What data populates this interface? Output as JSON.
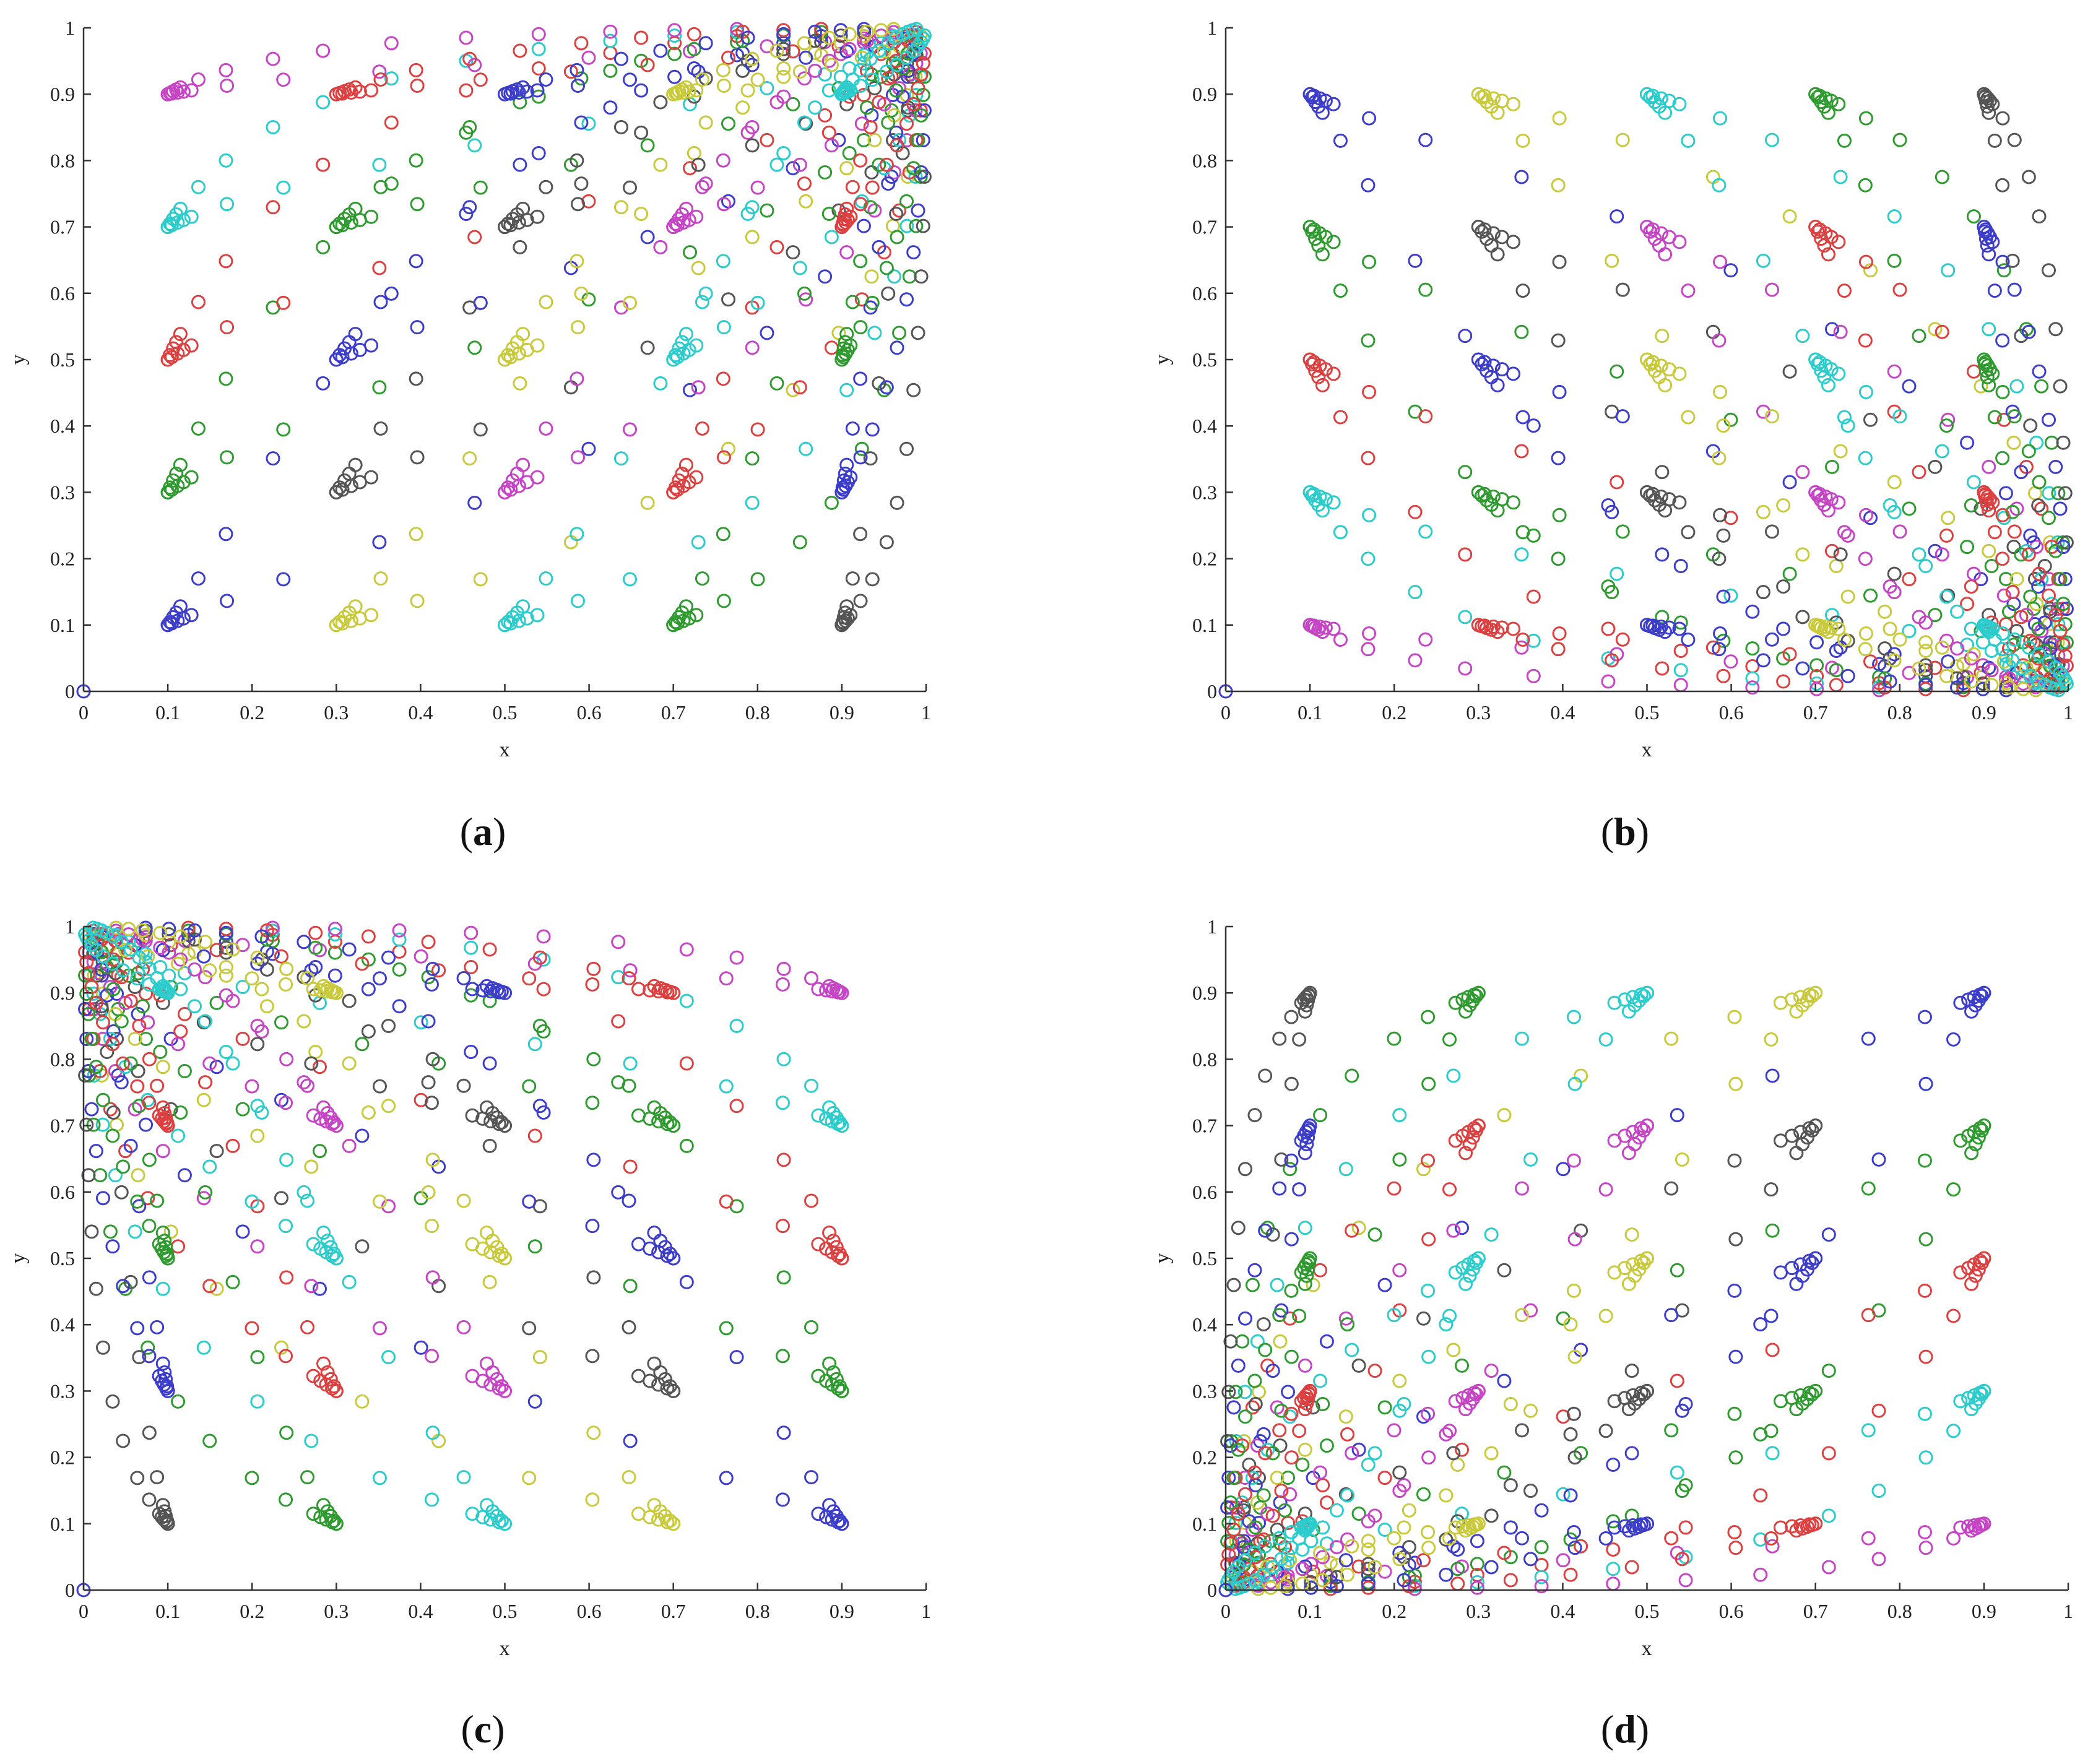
{
  "chart_data": [
    {
      "type": "scatter",
      "panel": "a",
      "title": "",
      "caption": {
        "open": "(",
        "letter": "a",
        "close": ")"
      },
      "xlabel": "x",
      "ylabel": "y",
      "xlim": [
        0,
        1
      ],
      "ylim": [
        0,
        1
      ],
      "xticks": [
        "0",
        "0.1",
        "0.2",
        "0.3",
        "0.4",
        "0.5",
        "0.6",
        "0.7",
        "0.8",
        "0.9",
        "1"
      ],
      "yticks": [
        "0",
        "0.1",
        "0.2",
        "0.3",
        "0.4",
        "0.5",
        "0.6",
        "0.7",
        "0.8",
        "0.9",
        "1"
      ],
      "grid": false,
      "marker": "open-circle",
      "transform": "identity",
      "description_of_series": "Grid of initial points (x0,y0) mapped by power-law curves x0^p, y0^q converging to (1,1)"
    },
    {
      "type": "scatter",
      "panel": "b",
      "title": "",
      "caption": {
        "open": "(",
        "letter": "b",
        "close": ")"
      },
      "xlabel": "x",
      "ylabel": "y",
      "xlim": [
        0,
        1
      ],
      "ylim": [
        0,
        1
      ],
      "xticks": [
        "0",
        "0.1",
        "0.2",
        "0.3",
        "0.4",
        "0.5",
        "0.6",
        "0.7",
        "0.8",
        "0.9",
        "1"
      ],
      "yticks": [
        "0",
        "0.1",
        "0.2",
        "0.3",
        "0.4",
        "0.5",
        "0.6",
        "0.7",
        "0.8",
        "0.9",
        "1"
      ],
      "grid": false,
      "marker": "open-circle",
      "transform": "converge-to-(1,0)"
    },
    {
      "type": "scatter",
      "panel": "c",
      "title": "",
      "caption": {
        "open": "(",
        "letter": "c",
        "close": ")"
      },
      "xlabel": "x",
      "ylabel": "y",
      "xlim": [
        0,
        1
      ],
      "ylim": [
        0,
        1
      ],
      "xticks": [
        "0",
        "0.1",
        "0.2",
        "0.3",
        "0.4",
        "0.5",
        "0.6",
        "0.7",
        "0.8",
        "0.9",
        "1"
      ],
      "yticks": [
        "0",
        "0.1",
        "0.2",
        "0.3",
        "0.4",
        "0.5",
        "0.6",
        "0.7",
        "0.8",
        "0.9",
        "1"
      ],
      "grid": false,
      "marker": "open-circle",
      "transform": "converge-to-(0,1)"
    },
    {
      "type": "scatter",
      "panel": "d",
      "title": "",
      "caption": {
        "open": "(",
        "letter": "d",
        "close": ")"
      },
      "xlabel": "x",
      "ylabel": "y",
      "xlim": [
        0,
        1
      ],
      "ylim": [
        0,
        1
      ],
      "xticks": [
        "0",
        "0.1",
        "0.2",
        "0.3",
        "0.4",
        "0.5",
        "0.6",
        "0.7",
        "0.8",
        "0.9",
        "1"
      ],
      "yticks": [
        "0",
        "0.1",
        "0.2",
        "0.3",
        "0.4",
        "0.5",
        "0.6",
        "0.7",
        "0.8",
        "0.9",
        "1"
      ],
      "grid": false,
      "marker": "open-circle",
      "transform": "converge-to-(0,0)"
    }
  ],
  "point_model": {
    "start_values": [
      0.1,
      0.3,
      0.5,
      0.7,
      0.9
    ],
    "exponents": [
      1,
      1.02,
      1.05,
      1.08,
      1.12,
      1.3,
      1.6,
      2.2,
      3,
      4.5,
      7,
      11,
      18,
      30,
      55
    ],
    "origin_point": [
      0,
      0
    ],
    "palette": [
      "#3d3dcc",
      "#2f9a2f",
      "#dc4040",
      "#2ccccc",
      "#c545c5",
      "#c9c93c",
      "#555555"
    ]
  }
}
